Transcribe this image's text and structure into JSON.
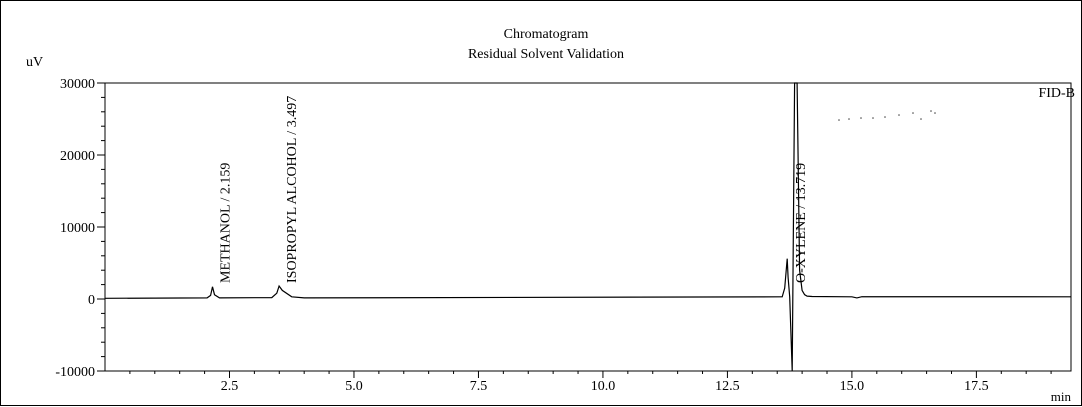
{
  "chart_data": {
    "type": "line",
    "title": "Chromatogram",
    "subtitle": "Residual Solvent Validation",
    "ylabel": "uV",
    "xlabel": "min",
    "detector_label": "FID-B",
    "xlim": [
      0,
      19.4
    ],
    "ylim": [
      -10000,
      30000
    ],
    "y_ticks": [
      30000,
      20000,
      10000,
      0,
      -10000
    ],
    "x_ticks": [
      2.5,
      5.0,
      7.5,
      10.0,
      12.5,
      15.0,
      17.5
    ],
    "x_tick_labels": [
      "2.5",
      "5.0",
      "7.5",
      "10.0",
      "12.5",
      "15.0",
      "17.5"
    ],
    "y_tick_labels": [
      "30000",
      "20000",
      "10000",
      "0",
      "-10000"
    ],
    "grid": false,
    "series": [
      {
        "x": [
          0,
          2.05,
          2.12,
          2.159,
          2.2,
          2.3,
          3.35,
          3.45,
          3.497,
          3.56,
          3.75,
          4.0,
          13.6,
          13.65,
          13.7,
          13.719,
          13.75,
          13.8,
          13.85,
          13.9,
          13.95,
          14.0,
          14.05,
          14.1,
          14.2,
          15.0,
          15.1,
          15.2,
          19.4
        ],
        "y": [
          100,
          150,
          500,
          1700,
          600,
          150,
          200,
          800,
          1800,
          1200,
          300,
          150,
          300,
          1500,
          5600,
          3000,
          300,
          -10000,
          30000,
          31000,
          4000,
          1200,
          600,
          400,
          350,
          300,
          150,
          320,
          300
        ]
      }
    ],
    "annotations": [
      {
        "text": "METHANOL / 2.159",
        "x": 2.159
      },
      {
        "text": "ISOPROPYL ALCOHOL / 3.497",
        "x": 3.497
      },
      {
        "text": "O-XYLENE / 13.719",
        "x": 13.719
      }
    ]
  }
}
